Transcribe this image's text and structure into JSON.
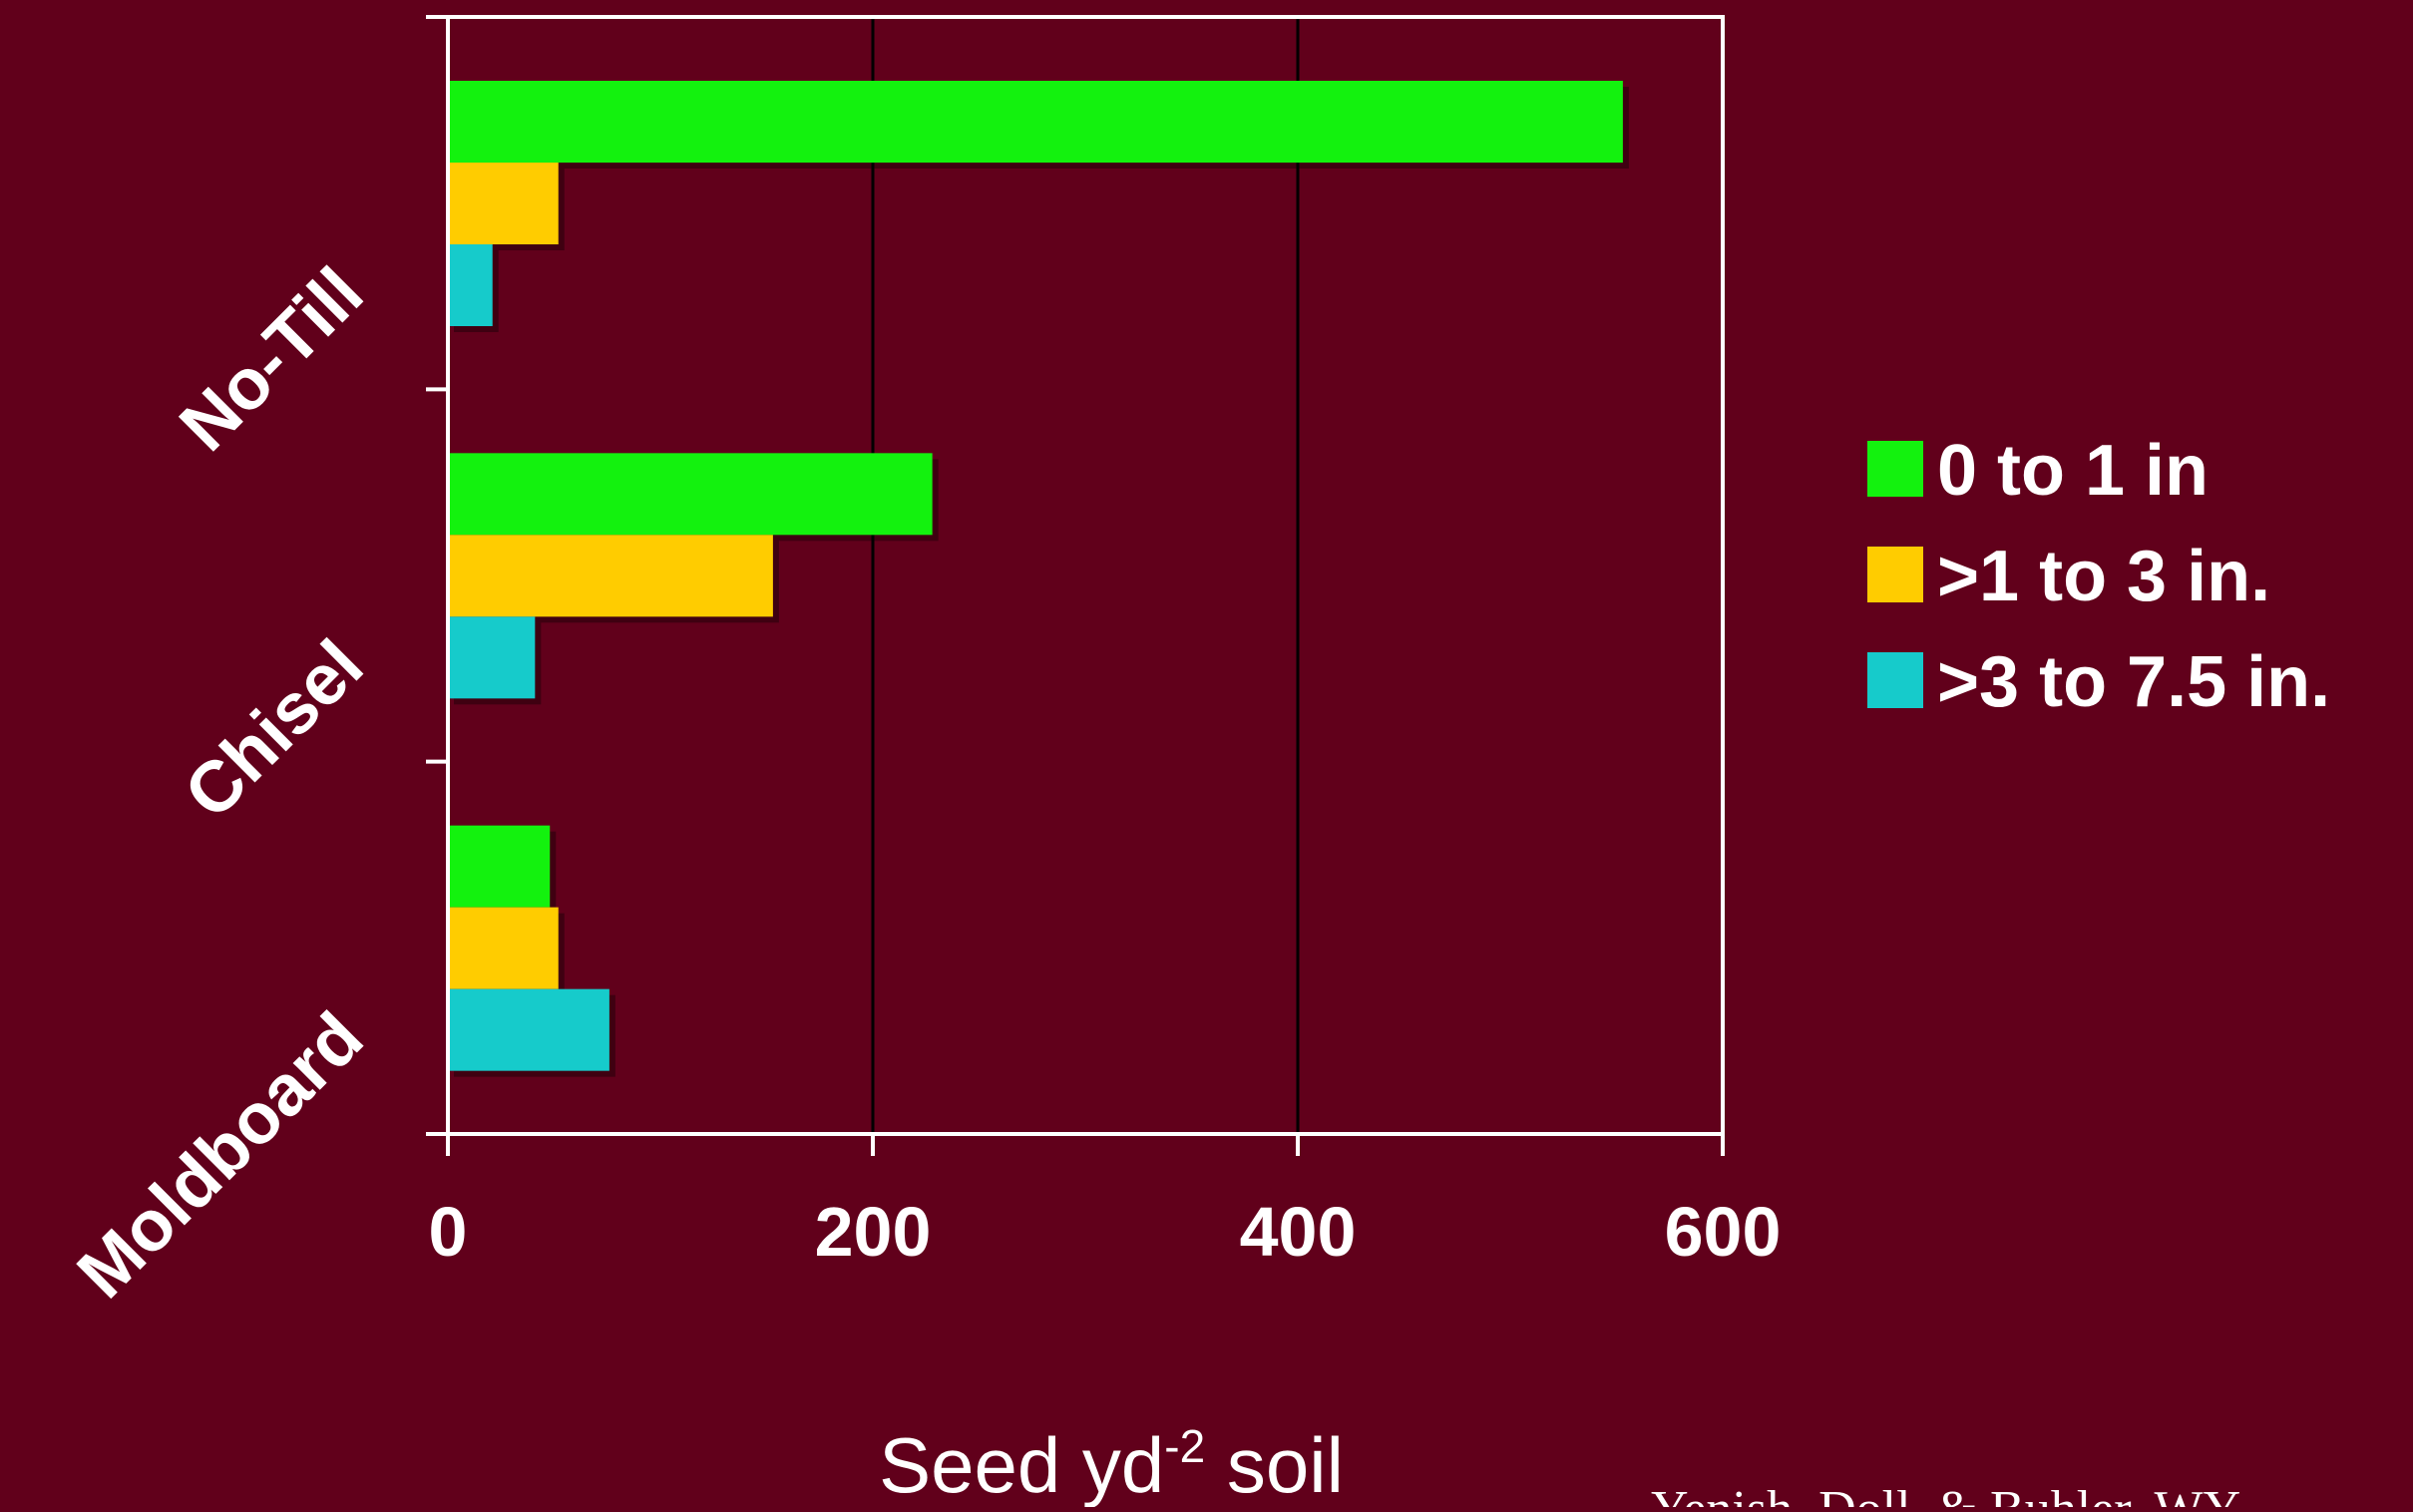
{
  "chart_data": {
    "type": "bar",
    "orientation": "horizontal",
    "categories": [
      "No-Till",
      "Chisel",
      "Moldboard"
    ],
    "series": [
      {
        "name": "0 to 1 in",
        "values": [
          553,
          228,
          48
        ],
        "color": "#13f20e"
      },
      {
        "name": ">1 to 3 in.",
        "values": [
          52,
          153,
          52
        ],
        "color": "#ffcc00"
      },
      {
        "name": ">3 to 7.5 in.",
        "values": [
          21,
          41,
          76
        ],
        "color": "#16cbcb"
      }
    ],
    "xlim": [
      0,
      600
    ],
    "xticks": [
      "0",
      "200",
      "400",
      "600"
    ],
    "grid": "vertical lines at 200 and 400",
    "legend_position": "right",
    "xlabel": {
      "main": "Seed yd",
      "superscript": "-2",
      "suffix": " soil"
    },
    "source_note": "Yenish, Doll, & Buhler, WY",
    "colors": {
      "background": "#61001b",
      "axis": "#ffffff",
      "grid": "#000000"
    }
  }
}
